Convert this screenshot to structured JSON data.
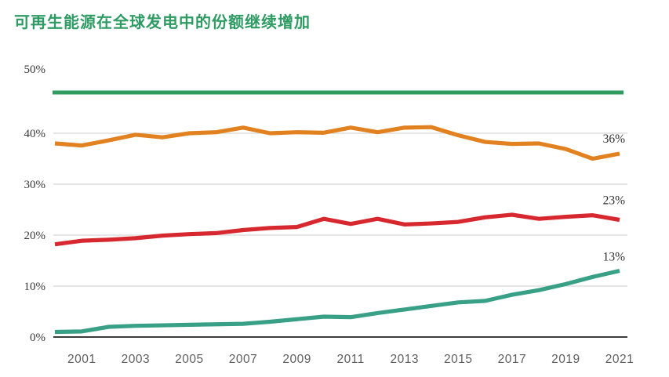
{
  "header": {
    "title": "可再生能源在全球发电中的份额继续增加",
    "title_color": "#2e9b63"
  },
  "chart_data": {
    "type": "line",
    "x": [
      2000,
      2001,
      2002,
      2003,
      2004,
      2005,
      2006,
      2007,
      2008,
      2009,
      2010,
      2011,
      2012,
      2013,
      2014,
      2015,
      2016,
      2017,
      2018,
      2019,
      2020,
      2021
    ],
    "x_tick_labels": [
      "2001",
      "2003",
      "2005",
      "2007",
      "2009",
      "2011",
      "2013",
      "2015",
      "2017",
      "2019",
      "2021"
    ],
    "x_tick_years": [
      2001,
      2003,
      2005,
      2007,
      2009,
      2011,
      2013,
      2015,
      2017,
      2019,
      2021
    ],
    "y_tick_labels": [
      "50%",
      "40%",
      "30%",
      "20%",
      "10%",
      "0%"
    ],
    "y_tick_values": [
      50,
      40,
      30,
      20,
      10,
      0
    ],
    "ylim": [
      0,
      50
    ],
    "xlim": [
      2000,
      2021
    ],
    "grid": "horizontal-light-gray, dark baseline at 0%",
    "legend": "none",
    "top_rule": {
      "color": "#2e9b5f",
      "at_percent": 48
    },
    "series": [
      {
        "name": "orange-line",
        "color": "#E2811F",
        "end_label": "36%",
        "values": [
          38.0,
          37.6,
          38.6,
          39.7,
          39.2,
          40.0,
          40.2,
          41.1,
          40.0,
          40.2,
          40.1,
          41.1,
          40.2,
          41.1,
          41.2,
          39.6,
          38.3,
          37.9,
          38.0,
          36.9,
          35.0,
          36.0
        ]
      },
      {
        "name": "red-line",
        "color": "#D7282F",
        "end_label": "23%",
        "values": [
          18.2,
          18.9,
          19.1,
          19.4,
          19.9,
          20.2,
          20.4,
          21.0,
          21.4,
          21.6,
          23.2,
          22.2,
          23.2,
          22.1,
          22.3,
          22.6,
          23.5,
          24.0,
          23.2,
          23.6,
          23.9,
          23.0
        ]
      },
      {
        "name": "teal-line",
        "color": "#38A086",
        "end_label": "13%",
        "values": [
          1.0,
          1.1,
          2.0,
          2.2,
          2.3,
          2.4,
          2.5,
          2.6,
          3.0,
          3.5,
          4.0,
          3.9,
          4.7,
          5.4,
          6.1,
          6.8,
          7.1,
          8.3,
          9.2,
          10.4,
          11.8,
          13.0
        ]
      }
    ],
    "colors": {
      "gridline": "#d8d8d8",
      "baseline": "#3c3c3c",
      "axis_text": "#3a3a3a",
      "tick_text": "#5f5f5f"
    }
  }
}
